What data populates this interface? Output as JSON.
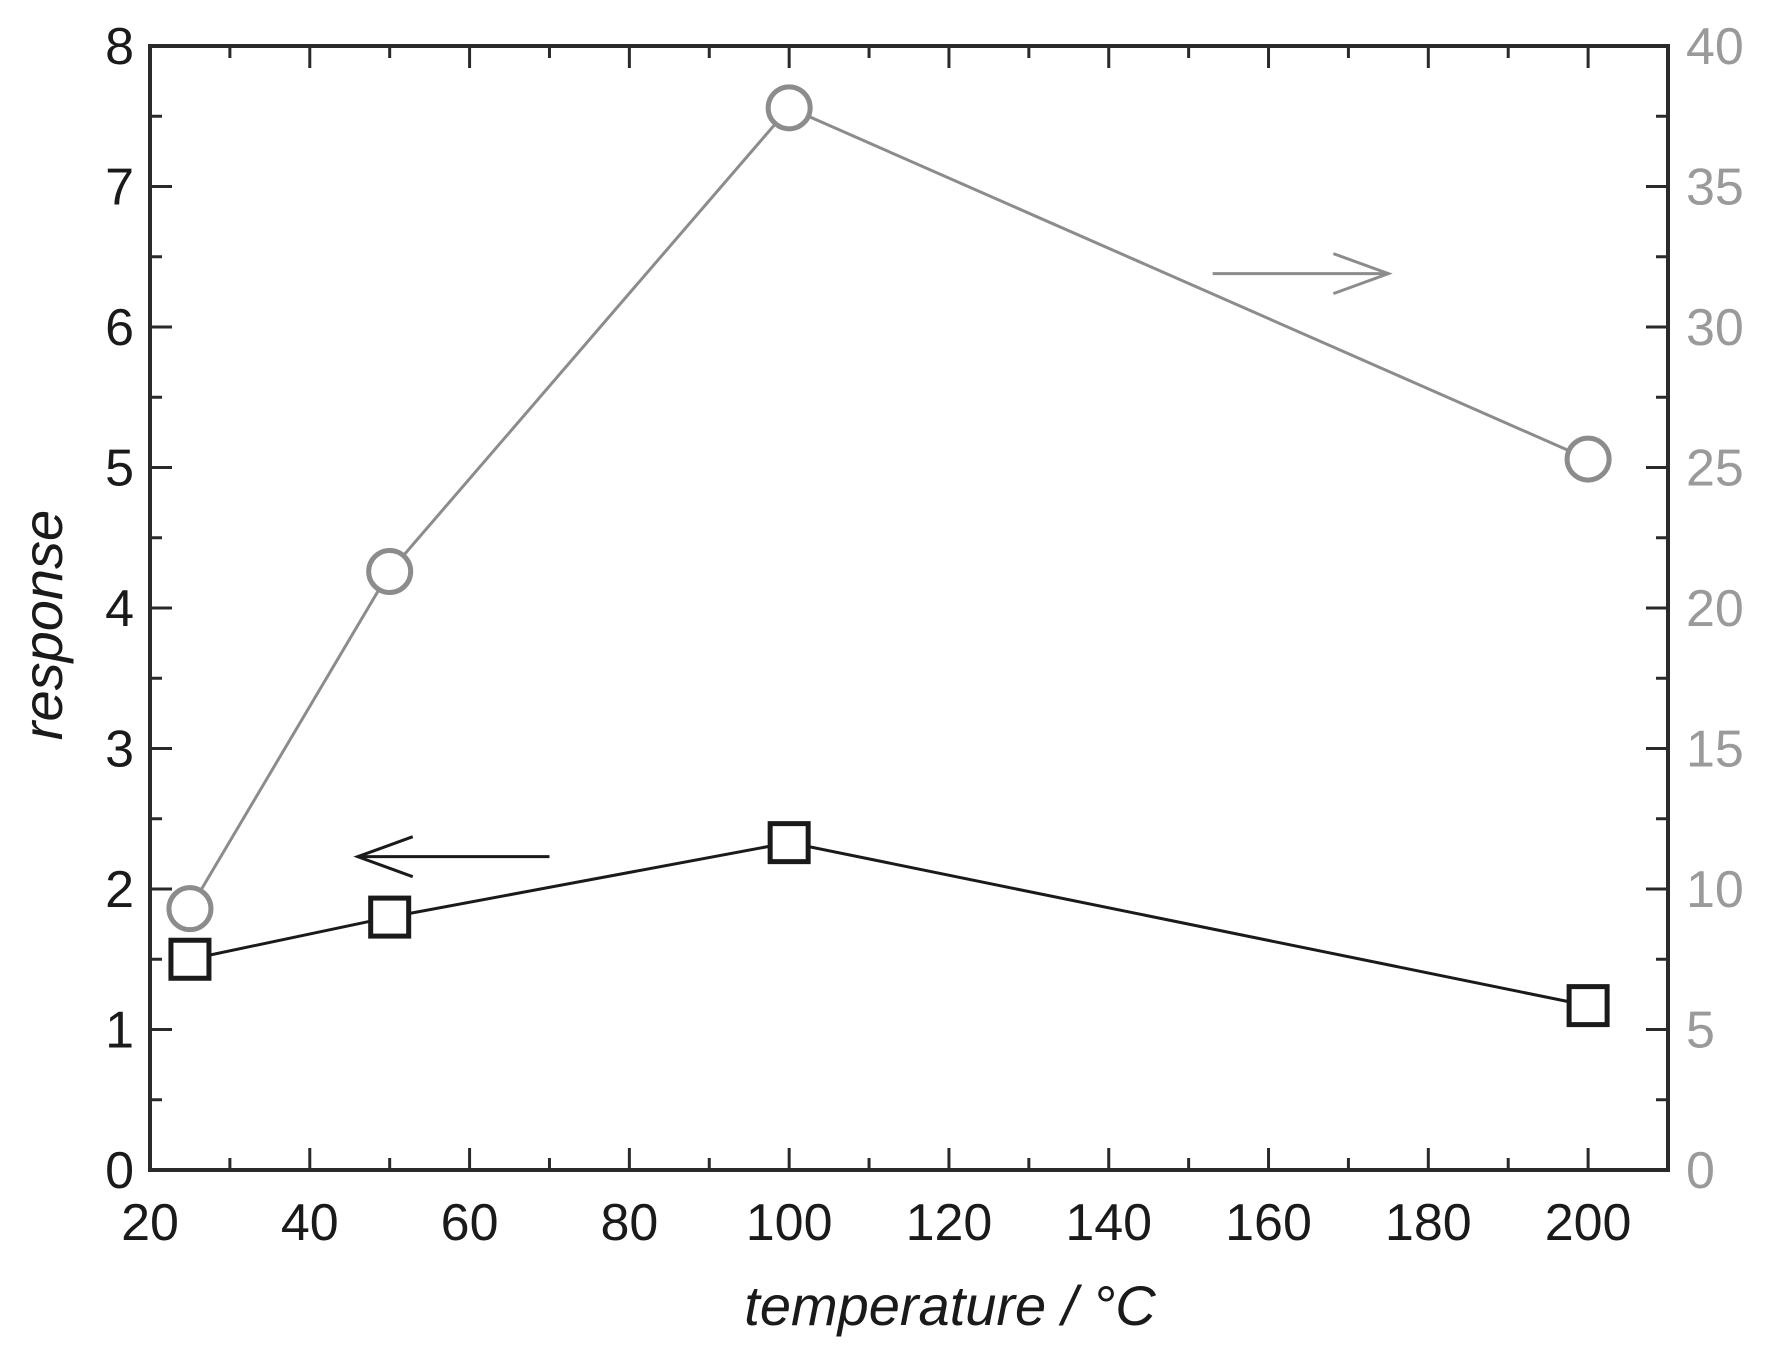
{
  "colors": {
    "left_series": "#1a1a1a",
    "right_series": "#8c8c8c",
    "axis": "#2a2a2a",
    "right_axis_text": "#9a9a9a",
    "background": "#ffffff"
  },
  "chart_data": {
    "type": "line",
    "xlabel": "temperature / °C",
    "ylabel": "response",
    "y2label": "",
    "xlim": [
      20,
      210
    ],
    "ylim": [
      0,
      8
    ],
    "y2lim": [
      0,
      40
    ],
    "xticks": [
      "20",
      "40",
      "60",
      "80",
      "100",
      "120",
      "140",
      "160",
      "180",
      "200"
    ],
    "yticks": [
      "0",
      "1",
      "2",
      "3",
      "4",
      "5",
      "6",
      "7",
      "8"
    ],
    "y2ticks": [
      "0",
      "5",
      "10",
      "15",
      "20",
      "25",
      "30",
      "35",
      "40"
    ],
    "grid": false,
    "legend": "none",
    "series": [
      {
        "axis": "left",
        "marker": "square",
        "x": [
          25,
          50,
          100,
          200
        ],
        "y": [
          1.5,
          1.8,
          2.33,
          1.17
        ]
      },
      {
        "axis": "right",
        "marker": "circle",
        "x": [
          25,
          50,
          100,
          200
        ],
        "y": [
          9.3,
          21.3,
          37.8,
          25.3
        ]
      }
    ],
    "annotations": [
      {
        "type": "arrow",
        "direction": "left",
        "meaning": "left axis",
        "color": "#1a1a1a"
      },
      {
        "type": "arrow",
        "direction": "right",
        "meaning": "right axis",
        "color": "#8c8c8c"
      }
    ]
  }
}
